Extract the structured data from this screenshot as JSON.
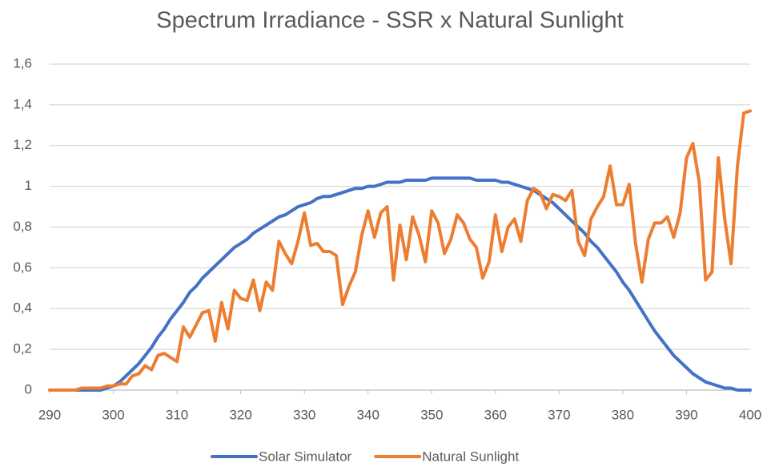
{
  "chart_data": {
    "type": "line",
    "title": "Spectrum Irradiance - SSR x Natural Sunlight",
    "x": [
      290,
      291,
      292,
      293,
      294,
      295,
      296,
      297,
      298,
      299,
      300,
      301,
      302,
      303,
      304,
      305,
      306,
      307,
      308,
      309,
      310,
      311,
      312,
      313,
      314,
      315,
      316,
      317,
      318,
      319,
      320,
      321,
      322,
      323,
      324,
      325,
      326,
      327,
      328,
      329,
      330,
      331,
      332,
      333,
      334,
      335,
      336,
      337,
      338,
      339,
      340,
      341,
      342,
      343,
      344,
      345,
      346,
      347,
      348,
      349,
      350,
      351,
      352,
      353,
      354,
      355,
      356,
      357,
      358,
      359,
      360,
      361,
      362,
      363,
      364,
      365,
      366,
      367,
      368,
      369,
      370,
      371,
      372,
      373,
      374,
      375,
      376,
      377,
      378,
      379,
      380,
      381,
      382,
      383,
      384,
      385,
      386,
      387,
      388,
      389,
      390,
      391,
      392,
      393,
      394,
      395,
      396,
      397,
      398,
      399,
      400
    ],
    "series": [
      {
        "name": "Solar Simulator",
        "color": "#4472c4",
        "values": [
          0,
          0,
          0,
          0,
          0,
          0,
          0,
          0,
          0,
          0.01,
          0.02,
          0.04,
          0.07,
          0.1,
          0.13,
          0.17,
          0.21,
          0.26,
          0.3,
          0.35,
          0.39,
          0.43,
          0.48,
          0.51,
          0.55,
          0.58,
          0.61,
          0.64,
          0.67,
          0.7,
          0.72,
          0.74,
          0.77,
          0.79,
          0.81,
          0.83,
          0.85,
          0.86,
          0.88,
          0.9,
          0.91,
          0.92,
          0.94,
          0.95,
          0.95,
          0.96,
          0.97,
          0.98,
          0.99,
          0.99,
          1.0,
          1.0,
          1.01,
          1.02,
          1.02,
          1.02,
          1.03,
          1.03,
          1.03,
          1.03,
          1.04,
          1.04,
          1.04,
          1.04,
          1.04,
          1.04,
          1.04,
          1.03,
          1.03,
          1.03,
          1.03,
          1.02,
          1.02,
          1.01,
          1.0,
          0.99,
          0.98,
          0.96,
          0.94,
          0.92,
          0.89,
          0.86,
          0.83,
          0.8,
          0.77,
          0.73,
          0.7,
          0.66,
          0.62,
          0.58,
          0.53,
          0.49,
          0.44,
          0.39,
          0.34,
          0.29,
          0.25,
          0.21,
          0.17,
          0.14,
          0.11,
          0.08,
          0.06,
          0.04,
          0.03,
          0.02,
          0.01,
          0.01,
          0,
          0,
          0
        ]
      },
      {
        "name": "Natural Sunlight",
        "color": "#ed7d31",
        "values": [
          0,
          0,
          0,
          0,
          0,
          0.01,
          0.01,
          0.01,
          0.01,
          0.02,
          0.02,
          0.03,
          0.03,
          0.07,
          0.08,
          0.12,
          0.1,
          0.17,
          0.18,
          0.16,
          0.14,
          0.31,
          0.26,
          0.32,
          0.38,
          0.39,
          0.24,
          0.43,
          0.3,
          0.49,
          0.45,
          0.44,
          0.54,
          0.39,
          0.53,
          0.49,
          0.73,
          0.67,
          0.62,
          0.73,
          0.87,
          0.71,
          0.72,
          0.68,
          0.68,
          0.66,
          0.42,
          0.51,
          0.58,
          0.76,
          0.88,
          0.75,
          0.87,
          0.9,
          0.54,
          0.81,
          0.64,
          0.85,
          0.76,
          0.63,
          0.88,
          0.82,
          0.67,
          0.74,
          0.86,
          0.82,
          0.74,
          0.7,
          0.55,
          0.63,
          0.86,
          0.68,
          0.8,
          0.84,
          0.73,
          0.93,
          0.99,
          0.97,
          0.89,
          0.96,
          0.95,
          0.93,
          0.98,
          0.73,
          0.66,
          0.84,
          0.9,
          0.95,
          1.1,
          0.91,
          0.91,
          1.01,
          0.72,
          0.53,
          0.74,
          0.82,
          0.82,
          0.85,
          0.75,
          0.87,
          1.14,
          1.21,
          1.02,
          0.54,
          0.58,
          1.14,
          0.84,
          0.62,
          1.1,
          1.36,
          1.37
        ]
      }
    ],
    "xlim": [
      290,
      400
    ],
    "xticks": [
      290,
      300,
      310,
      320,
      330,
      340,
      350,
      360,
      370,
      380,
      390,
      400
    ],
    "ylim": [
      0,
      1.6
    ],
    "yticks": [
      0,
      {
        "value": 0.2,
        "label": "0,2"
      },
      {
        "value": 0.4,
        "label": "0,4"
      },
      {
        "value": 0.6,
        "label": "0,6"
      },
      {
        "value": 0.8,
        "label": "0,8"
      },
      1,
      {
        "value": 1.2,
        "label": "1,2"
      },
      {
        "value": 1.4,
        "label": "1,4"
      },
      {
        "value": 1.6,
        "label": "1,6"
      }
    ],
    "grid": true,
    "legend": "bottom"
  }
}
